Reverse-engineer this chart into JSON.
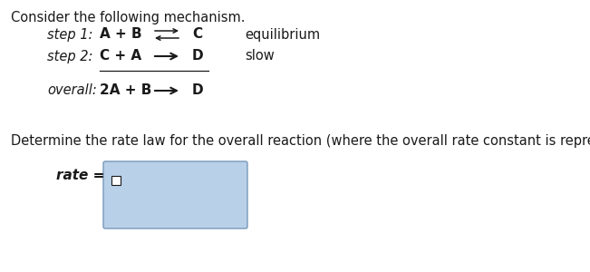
{
  "title": "Consider the following mechanism.",
  "step1_label": "step 1:",
  "step1_reactants": "A + B",
  "step1_product": "C",
  "step1_type": "equilibrium",
  "step2_label": "step 2:",
  "step2_reactants": "C + A",
  "step2_product": "D",
  "step2_type": "slow",
  "overall_label": "overall:",
  "overall_reactants": "2A + B",
  "overall_product": "D",
  "question_text": "Determine the rate law for the overall reaction (where the overall rate constant is represented as k).",
  "rate_label": "rate =",
  "bg_color": "#ffffff",
  "text_color": "#1a1a1a",
  "box_fill": "#b8d0e8",
  "box_border": "#7799bb",
  "font_size": 10.5
}
